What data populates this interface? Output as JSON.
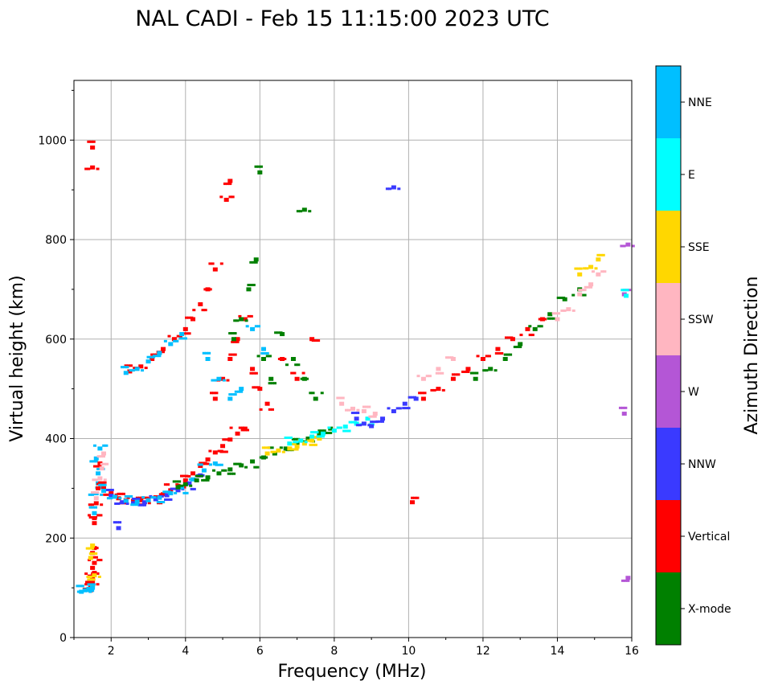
{
  "chart_data": {
    "type": "scatter",
    "title": "NAL CADI - Feb 15 11:15:00 2023 UTC",
    "xlabel": "Frequency (MHz)",
    "ylabel": "Virtual height (km)",
    "xlim": [
      1,
      16
    ],
    "ylim": [
      0,
      1120
    ],
    "xticks": [
      "2",
      "4",
      "6",
      "8",
      "10",
      "12",
      "14",
      "16"
    ],
    "yticks": [
      "0",
      "200",
      "400",
      "600",
      "800",
      "1000"
    ],
    "grid": true,
    "colorbar": {
      "title": "Azimuth Direction",
      "categories": [
        {
          "name": "X-mode",
          "color": "#008000"
        },
        {
          "name": "Vertical",
          "color": "#ff0000"
        },
        {
          "name": "NNW",
          "color": "#3a3aff"
        },
        {
          "name": "W",
          "color": "#b456d6"
        },
        {
          "name": "SSW",
          "color": "#ffb6c1"
        },
        {
          "name": "SSE",
          "color": "#ffd700"
        },
        {
          "name": "E",
          "color": "#00ffff"
        },
        {
          "name": "NNE",
          "color": "#00bfff"
        }
      ]
    },
    "traces": [
      {
        "name": "low-E-layer",
        "category": "Vertical",
        "x": [
          1.45,
          1.5,
          1.5,
          1.55,
          1.55,
          1.5,
          1.45,
          1.5,
          1.55
        ],
        "y": [
          100,
          110,
          120,
          130,
          150,
          170,
          95,
          140,
          180
        ]
      },
      {
        "name": "low-E-layer-mixed",
        "category": "SSE",
        "x": [
          1.5,
          1.55,
          1.45,
          1.5
        ],
        "y": [
          105,
          125,
          160,
          185
        ]
      },
      {
        "name": "low-E-layer-nne",
        "category": "NNE",
        "x": [
          1.2,
          1.3,
          1.4,
          1.5
        ],
        "y": [
          92,
          95,
          98,
          100
        ]
      },
      {
        "name": "F-rise",
        "category": "NNE",
        "x": [
          1.55,
          1.6,
          1.65,
          1.6,
          1.7,
          1.65
        ],
        "y": [
          250,
          290,
          330,
          360,
          380,
          310
        ]
      },
      {
        "name": "F-rise-vertical",
        "category": "Vertical",
        "x": [
          1.55,
          1.6,
          1.65,
          1.7,
          1.55
        ],
        "y": [
          230,
          270,
          300,
          350,
          240
        ]
      },
      {
        "name": "F-rise-pink",
        "category": "SSW",
        "x": [
          1.6,
          1.7,
          1.75,
          1.8
        ],
        "y": [
          280,
          320,
          340,
          370
        ]
      },
      {
        "name": "F-layer-O",
        "category": "Vertical",
        "x": [
          1.8,
          2.0,
          2.2,
          2.4,
          2.6,
          2.8,
          3.0,
          3.2,
          3.4,
          3.6,
          3.8,
          4.0,
          4.2,
          4.4,
          4.6,
          4.8,
          5.0,
          5.2,
          5.4,
          5.6
        ],
        "y": [
          300,
          290,
          280,
          276,
          275,
          276,
          278,
          282,
          288,
          296,
          305,
          316,
          330,
          345,
          358,
          372,
          385,
          398,
          410,
          420
        ]
      },
      {
        "name": "F-layer-O-nnw",
        "category": "NNW",
        "x": [
          2.0,
          2.3,
          2.6,
          2.9,
          3.2,
          3.5,
          3.8,
          4.1,
          4.4
        ],
        "y": [
          285,
          272,
          270,
          272,
          278,
          286,
          296,
          310,
          326
        ]
      },
      {
        "name": "F-layer-O-nne",
        "category": "NNE",
        "x": [
          1.8,
          2.1,
          2.4,
          2.7,
          3.0,
          3.3,
          3.6,
          3.9,
          4.2,
          4.5,
          4.8
        ],
        "y": [
          295,
          283,
          275,
          273,
          276,
          281,
          290,
          302,
          318,
          336,
          350
        ]
      },
      {
        "name": "F-layer-X",
        "category": "X-mode",
        "x": [
          3.8,
          4.0,
          4.3,
          4.6,
          4.9,
          5.2,
          5.5,
          5.8,
          6.1,
          6.4,
          6.7,
          7.0,
          7.3,
          7.6,
          7.9
        ],
        "y": [
          302,
          308,
          316,
          322,
          330,
          338,
          346,
          354,
          362,
          370,
          380,
          390,
          400,
          410,
          420
        ]
      },
      {
        "name": "F-X-yellow",
        "category": "SSE",
        "x": [
          6.2,
          6.5,
          6.8,
          7.0,
          7.2,
          7.4,
          7.6
        ],
        "y": [
          370,
          376,
          380,
          384,
          390,
          396,
          400
        ]
      },
      {
        "name": "F-X-cyan",
        "category": "E",
        "x": [
          6.8,
          7.1,
          7.4,
          7.7,
          8.0,
          8.3,
          8.6,
          8.9
        ],
        "y": [
          390,
          396,
          404,
          410,
          416,
          424,
          430,
          440
        ]
      },
      {
        "name": "oblique-band",
        "category": "Vertical",
        "x": [
          2.5,
          2.8,
          3.1,
          3.4,
          3.7,
          4.0,
          4.2,
          4.4,
          4.6,
          4.8
        ],
        "y": [
          535,
          545,
          560,
          580,
          600,
          620,
          640,
          670,
          700,
          740
        ]
      },
      {
        "name": "oblique-band-nne",
        "category": "NNE",
        "x": [
          2.4,
          2.7,
          3.0,
          3.3,
          3.6,
          3.9
        ],
        "y": [
          532,
          540,
          555,
          572,
          590,
          610
        ]
      },
      {
        "name": "spread-F-vertical",
        "category": "Vertical",
        "x": [
          4.8,
          5.0,
          5.2,
          5.4,
          5.6,
          5.8,
          6.0,
          6.2,
          6.6,
          7.0,
          7.4
        ],
        "y": [
          480,
          520,
          560,
          600,
          640,
          540,
          500,
          470,
          560,
          520,
          600
        ]
      },
      {
        "name": "spread-F-xmode",
        "category": "X-mode",
        "x": [
          5.3,
          5.5,
          5.7,
          5.9,
          6.1,
          6.3,
          6.6,
          6.9,
          7.2,
          7.5
        ],
        "y": [
          600,
          640,
          700,
          760,
          560,
          520,
          610,
          560,
          520,
          480
        ]
      },
      {
        "name": "spread-F-nne",
        "category": "NNE",
        "x": [
          4.6,
          4.9,
          5.2,
          5.5,
          5.8,
          6.1
        ],
        "y": [
          560,
          520,
          480,
          500,
          620,
          580
        ]
      },
      {
        "name": "oblique-nnw",
        "category": "NNW",
        "x": [
          8.6,
          8.8,
          9.0,
          9.3,
          9.6,
          9.9,
          10.2
        ],
        "y": [
          440,
          430,
          425,
          440,
          455,
          470,
          480
        ]
      },
      {
        "name": "oblique-pink",
        "category": "SSW",
        "x": [
          8.2,
          8.5,
          8.8,
          9.1,
          10.4,
          10.8,
          11.2
        ],
        "y": [
          470,
          460,
          455,
          450,
          520,
          540,
          560
        ]
      },
      {
        "name": "oblique-vertical-2",
        "category": "Vertical",
        "x": [
          10.4,
          10.8,
          11.2,
          11.6,
          12.0,
          12.4,
          12.8,
          13.2,
          13.6
        ],
        "y": [
          480,
          500,
          520,
          540,
          560,
          580,
          600,
          620,
          640
        ]
      },
      {
        "name": "oblique-xmode-2",
        "category": "X-mode",
        "x": [
          11.8,
          12.2,
          12.6,
          13.0,
          13.4,
          13.8,
          14.2,
          14.6
        ],
        "y": [
          520,
          540,
          560,
          590,
          620,
          650,
          680,
          700
        ]
      },
      {
        "name": "oblique-high",
        "category": "SSW",
        "x": [
          14.0,
          14.3,
          14.6,
          14.9,
          15.1
        ],
        "y": [
          640,
          660,
          690,
          710,
          730
        ]
      },
      {
        "name": "oblique-high-yellow",
        "category": "SSE",
        "x": [
          14.6,
          14.9,
          15.1
        ],
        "y": [
          730,
          745,
          760
        ]
      },
      {
        "name": "edge-w",
        "category": "W",
        "x": [
          15.8,
          15.9,
          15.8,
          15.9
        ],
        "y": [
          450,
          790,
          690,
          120
        ]
      },
      {
        "name": "edge-e",
        "category": "E",
        "x": [
          15.85
        ],
        "y": [
          687
        ]
      },
      {
        "name": "outliers-vertical",
        "category": "Vertical",
        "x": [
          1.5,
          1.5,
          10.1,
          5.2,
          5.1
        ],
        "y": [
          985,
          945,
          272,
          918,
          880
        ]
      },
      {
        "name": "outliers-nnw",
        "category": "NNW",
        "x": [
          2.2,
          9.6
        ],
        "y": [
          220,
          905
        ]
      },
      {
        "name": "outliers-xmode",
        "category": "X-mode",
        "x": [
          6.0,
          7.2
        ],
        "y": [
          935,
          860
        ]
      }
    ]
  }
}
